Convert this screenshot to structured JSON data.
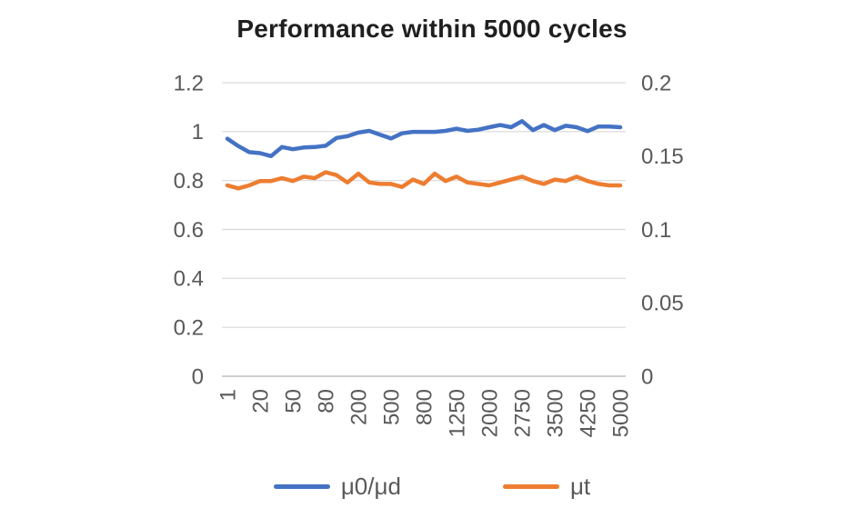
{
  "colors": {
    "background": "#FFFFFF",
    "title_text": "#1F1F1F",
    "tick_text": "#595959",
    "legend_text": "#595959",
    "grid": "#D9D9D9",
    "axis_line": "#BFBFBF",
    "series_blue": "#4472C4",
    "series_orange": "#ED7D31"
  },
  "chart_data": {
    "type": "line",
    "title": "Performance within 5000 cycles",
    "xlabel": "",
    "ylabel_left": "",
    "ylabel_right": "",
    "grid": "horizontal",
    "legend_position": "bottom",
    "x_tick_labels": [
      "1",
      "20",
      "50",
      "80",
      "200",
      "500",
      "800",
      "1250",
      "2000",
      "2750",
      "3500",
      "4250",
      "5000"
    ],
    "x_tick_indices": [
      0,
      3,
      6,
      9,
      12,
      15,
      18,
      21,
      24,
      27,
      30,
      33,
      36
    ],
    "left_axis": {
      "min": 0,
      "max": 1.2,
      "tick_values": [
        1.2,
        1,
        0.8,
        0.6,
        0.4,
        0.2,
        0
      ],
      "tick_labels": [
        "1.2",
        "1",
        "0.8",
        "0.6",
        "0.4",
        "0.2",
        "0"
      ]
    },
    "right_axis": {
      "min": 0,
      "max": 0.2,
      "tick_values": [
        0.2,
        0.15,
        0.1,
        0.05,
        0
      ],
      "tick_labels": [
        "0.2",
        "0.15",
        "0.1",
        "0.05",
        "0"
      ]
    },
    "series": [
      {
        "name": "μ0/μd",
        "axis": "left",
        "color": "#4472C4",
        "values": [
          0.971,
          0.941,
          0.916,
          0.912,
          0.9,
          0.937,
          0.928,
          0.935,
          0.937,
          0.942,
          0.974,
          0.981,
          0.996,
          1.003,
          0.987,
          0.972,
          0.993,
          0.999,
          0.999,
          0.999,
          1.003,
          1.012,
          1.003,
          1.008,
          1.018,
          1.027,
          1.018,
          1.043,
          1.006,
          1.027,
          1.006,
          1.024,
          1.018,
          1.002,
          1.021,
          1.021,
          1.018
        ]
      },
      {
        "name": "μt",
        "axis": "right",
        "color": "#ED7D31",
        "values": [
          0.13,
          0.128,
          0.13,
          0.133,
          0.133,
          0.135,
          0.133,
          0.136,
          0.135,
          0.139,
          0.137,
          0.132,
          0.138,
          0.132,
          0.131,
          0.131,
          0.129,
          0.134,
          0.131,
          0.138,
          0.133,
          0.136,
          0.132,
          0.131,
          0.13,
          0.132,
          0.134,
          0.136,
          0.133,
          0.131,
          0.134,
          0.133,
          0.136,
          0.133,
          0.131,
          0.13,
          0.13
        ]
      }
    ]
  }
}
